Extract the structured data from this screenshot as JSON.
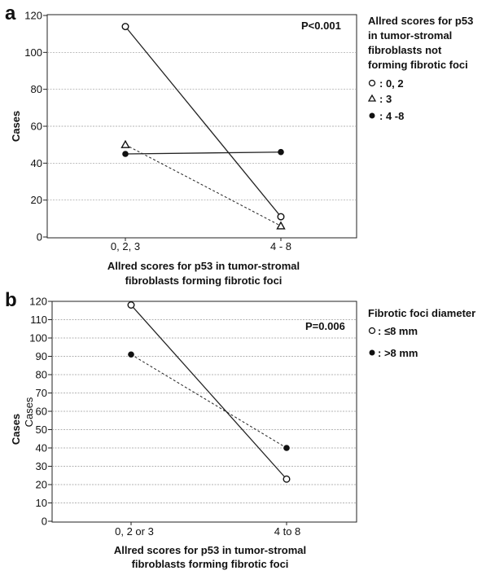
{
  "chart_data": [
    {
      "panel": "a",
      "type": "line",
      "ylabel": "Cases",
      "xlabel": [
        "Allred scores for p53 in tumor-stromal",
        "fibroblasts forming fibrotic foci"
      ],
      "categories": [
        "0, 2, 3",
        "4 - 8"
      ],
      "ylim": [
        0,
        120
      ],
      "yticks": [
        0,
        20,
        40,
        60,
        80,
        100,
        120
      ],
      "grid": true,
      "annotation": "P<0.001",
      "legend_title": [
        "Allred scores for p53",
        "in tumor-stromal",
        "fibroblasts not",
        "forming fibrotic foci"
      ],
      "legend_position": "right",
      "series": [
        {
          "name": ": 0, 2",
          "marker": "open-circle",
          "line": "solid",
          "values": [
            114,
            11
          ],
          "legend_symbol": "o"
        },
        {
          "name": ": 3",
          "marker": "open-triangle",
          "line": "dashed",
          "values": [
            50,
            6
          ],
          "legend_symbol": "Δ"
        },
        {
          "name": ": 4 -8",
          "marker": "filled-circle",
          "line": "solid",
          "values": [
            45,
            46
          ],
          "legend_symbol": "●"
        }
      ]
    },
    {
      "panel": "b",
      "type": "line",
      "ylabel": "Cases",
      "ylabel_upper": "Cases",
      "xlabel": [
        "Allred scores for p53 in tumor-stromal",
        "fibroblasts forming fibrotic foci"
      ],
      "categories": [
        "0, 2 or 3",
        "4 to 8"
      ],
      "ylim": [
        0,
        120
      ],
      "yticks": [
        0,
        10,
        20,
        30,
        40,
        50,
        60,
        70,
        80,
        90,
        100,
        110,
        120
      ],
      "grid": true,
      "annotation": "P=0.006",
      "legend_title": [
        "Fibrotic foci diameter"
      ],
      "legend_position": "right",
      "series": [
        {
          "name": ": ≤8 mm",
          "marker": "open-circle",
          "line": "solid",
          "values": [
            118,
            23
          ],
          "legend_symbol": "o"
        },
        {
          "name": ": >8 mm",
          "marker": "filled-circle",
          "line": "dashed",
          "values": [
            91,
            40
          ],
          "legend_symbol": "●"
        }
      ]
    }
  ]
}
